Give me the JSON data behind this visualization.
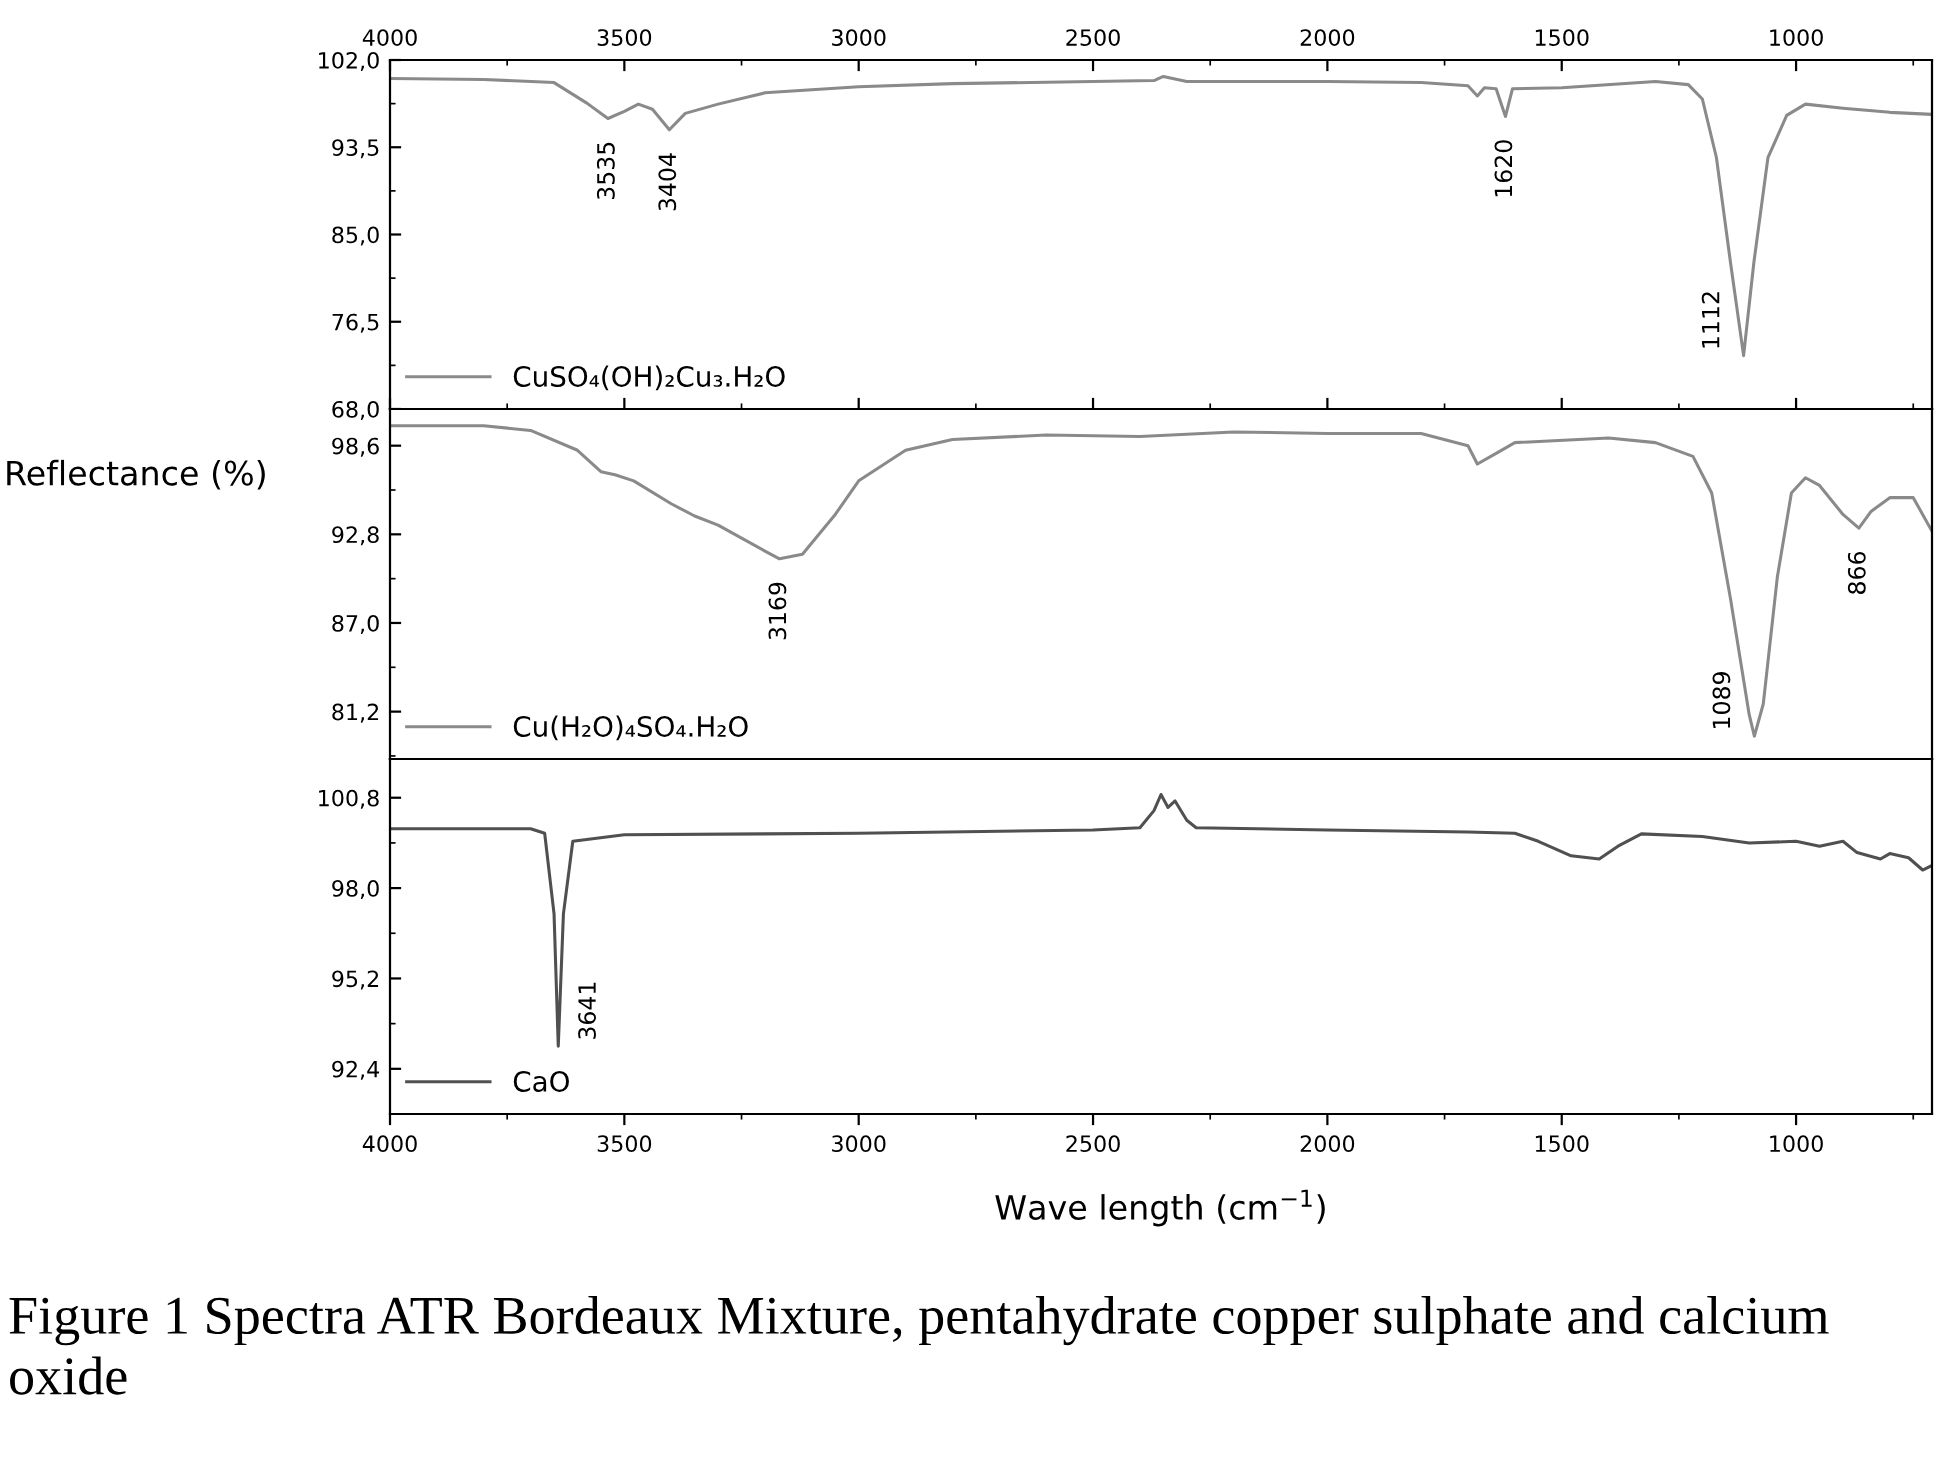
{
  "chart_data": [
    {
      "type": "line",
      "xlim": [
        4000,
        710
      ],
      "xticks": [
        4000,
        3500,
        3000,
        2500,
        2000,
        1500,
        1000
      ],
      "ylim": [
        68,
        102
      ],
      "yticks": [
        {
          "value": 68,
          "label": "68,0"
        },
        {
          "value": 76.5,
          "label": "76,5"
        },
        {
          "value": 85,
          "label": "85,0"
        },
        {
          "value": 93.5,
          "label": "93,5"
        },
        {
          "value": 102,
          "label": "102,0"
        }
      ],
      "legend": "bottom left",
      "grid": false,
      "series": [
        {
          "name": "CuSO₄(OH)₂Cu₃.H₂O",
          "color": "#8a8a8a",
          "x": [
            4000,
            3800,
            3650,
            3580,
            3535,
            3500,
            3470,
            3440,
            3404,
            3370,
            3300,
            3200,
            3000,
            2800,
            2500,
            2370,
            2350,
            2300,
            2000,
            1800,
            1700,
            1680,
            1665,
            1640,
            1620,
            1605,
            1500,
            1300,
            1230,
            1200,
            1170,
            1140,
            1112,
            1090,
            1060,
            1020,
            980,
            900,
            800,
            710
          ],
          "values": [
            100.2,
            100.1,
            99.8,
            97.8,
            96.3,
            97.0,
            97.7,
            97.2,
            95.2,
            96.8,
            97.7,
            98.8,
            99.4,
            99.7,
            99.9,
            100.0,
            100.4,
            99.9,
            99.9,
            99.8,
            99.5,
            98.5,
            99.3,
            99.2,
            96.5,
            99.2,
            99.3,
            99.9,
            99.6,
            98.2,
            92.5,
            82.3,
            73.2,
            82.3,
            92.5,
            96.6,
            97.7,
            97.3,
            96.9,
            96.7
          ]
        }
      ],
      "annotations": [
        {
          "text": "3535",
          "x": 3535,
          "y": 96.3
        },
        {
          "text": "3404",
          "x": 3404,
          "y": 95.2
        },
        {
          "text": "1620",
          "x": 1620,
          "y": 96.5
        },
        {
          "text": "1112",
          "x": 1112,
          "y": 73.2
        }
      ]
    },
    {
      "type": "line",
      "xlim": [
        4000,
        710
      ],
      "ylim": [
        78.1,
        101.0
      ],
      "yticks": [
        {
          "value": 81.2,
          "label": "81,2"
        },
        {
          "value": 87.0,
          "label": "87,0"
        },
        {
          "value": 92.8,
          "label": "92,8"
        },
        {
          "value": 98.6,
          "label": "98,6"
        }
      ],
      "tick_labels": "y",
      "legend": "bottom left",
      "grid": false,
      "ylabel": "Reflectance (%)",
      "series": [
        {
          "name": "Cu(H₂O)₄SO₄.H₂O",
          "color": "#8a8a8a",
          "x": [
            4000,
            3800,
            3700,
            3600,
            3550,
            3520,
            3480,
            3400,
            3350,
            3300,
            3200,
            3169,
            3120,
            3050,
            3000,
            2900,
            2800,
            2600,
            2400,
            2200,
            2000,
            1800,
            1700,
            1680,
            1640,
            1600,
            1400,
            1300,
            1220,
            1180,
            1140,
            1100,
            1089,
            1070,
            1040,
            1010,
            980,
            950,
            900,
            866,
            840,
            800,
            750,
            710
          ],
          "values": [
            99.9,
            99.9,
            99.6,
            98.3,
            96.9,
            96.7,
            96.3,
            94.8,
            94.0,
            93.4,
            91.7,
            91.2,
            91.5,
            94.1,
            96.3,
            98.3,
            99.0,
            99.3,
            99.2,
            99.5,
            99.4,
            99.4,
            98.6,
            97.4,
            98.1,
            98.8,
            99.1,
            98.8,
            97.9,
            95.5,
            88.6,
            81.0,
            79.6,
            81.7,
            90.0,
            95.5,
            96.5,
            96.0,
            94.1,
            93.2,
            94.3,
            95.2,
            95.2,
            93.0
          ]
        }
      ],
      "annotations": [
        {
          "text": "3169",
          "x": 3169,
          "y": 91.2
        },
        {
          "text": "1089",
          "x": 1089,
          "y": 79.6
        },
        {
          "text": "866",
          "x": 866,
          "y": 93.2
        }
      ]
    },
    {
      "type": "line",
      "xlim": [
        4000,
        710
      ],
      "xticks": [
        4000,
        3500,
        3000,
        2500,
        2000,
        1500,
        1000
      ],
      "ylim": [
        91.0,
        102.0
      ],
      "yticks": [
        {
          "value": 92.4,
          "label": "92,4"
        },
        {
          "value": 95.2,
          "label": "95,2"
        },
        {
          "value": 98.0,
          "label": "98,0"
        },
        {
          "value": 100.8,
          "label": "100,8"
        }
      ],
      "xlabel": "Wave length (cm$^{−1}$)",
      "legend": "bottom left",
      "grid": false,
      "series": [
        {
          "name": "CaO",
          "color": "#505050",
          "x": [
            4000,
            3700,
            3670,
            3650,
            3641,
            3630,
            3610,
            3500,
            3000,
            2500,
            2400,
            2370,
            2355,
            2340,
            2325,
            2300,
            2280,
            2000,
            1700,
            1600,
            1550,
            1480,
            1420,
            1380,
            1330,
            1200,
            1100,
            1000,
            950,
            900,
            870,
            820,
            800,
            760,
            730,
            710
          ],
          "values": [
            99.84,
            99.84,
            99.7,
            97.2,
            93.1,
            97.2,
            99.45,
            99.65,
            99.7,
            99.8,
            99.87,
            100.4,
            100.9,
            100.5,
            100.7,
            100.1,
            99.87,
            99.8,
            99.74,
            99.7,
            99.45,
            99.0,
            98.9,
            99.3,
            99.68,
            99.6,
            99.4,
            99.45,
            99.3,
            99.45,
            99.1,
            98.9,
            99.07,
            98.94,
            98.56,
            98.7
          ]
        }
      ],
      "annotations": [
        {
          "text": "3641",
          "x": 3641,
          "y": 93.1
        },
        "Figure 1 Spectra ATR Bordeaux Mixture, pentahydrate copper sulphate and calcium oxide"
      ]
    }
  ]
}
